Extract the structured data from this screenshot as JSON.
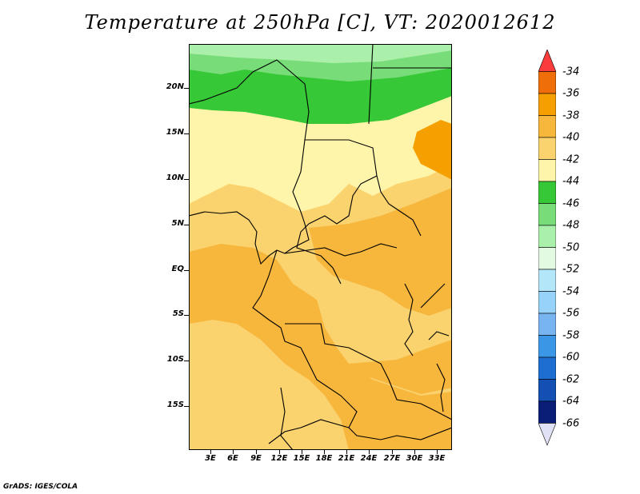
{
  "title": "Temperature at 250hPa [C], VT: 2020012612",
  "footer": "GrADS: IGES/COLA",
  "map": {
    "lat_labels": [
      "20N",
      "15N",
      "10N",
      "5N",
      "EQ",
      "5S",
      "10S",
      "15S"
    ],
    "lon_labels": [
      "3E",
      "6E",
      "9E",
      "12E",
      "15E",
      "18E",
      "21E",
      "24E",
      "27E",
      "30E",
      "33E"
    ]
  },
  "colorbar": {
    "labels": [
      "-34",
      "-36",
      "-38",
      "-40",
      "-42",
      "-44",
      "-46",
      "-48",
      "-50",
      "-52",
      "-54",
      "-56",
      "-58",
      "-60",
      "-62",
      "-64",
      "-66"
    ],
    "colors": [
      "#fa3c3c",
      "#f06e0a",
      "#f5a000",
      "#f7b63c",
      "#fad26e",
      "#fff5aa",
      "#37c837",
      "#78dc78",
      "#aaf0aa",
      "#e1fae1",
      "#b4e6fa",
      "#96d2fa",
      "#78b4f0",
      "#3c96e6",
      "#1e6ed2",
      "#1450b4",
      "#0a1e78",
      "#e1e1f5"
    ]
  }
}
